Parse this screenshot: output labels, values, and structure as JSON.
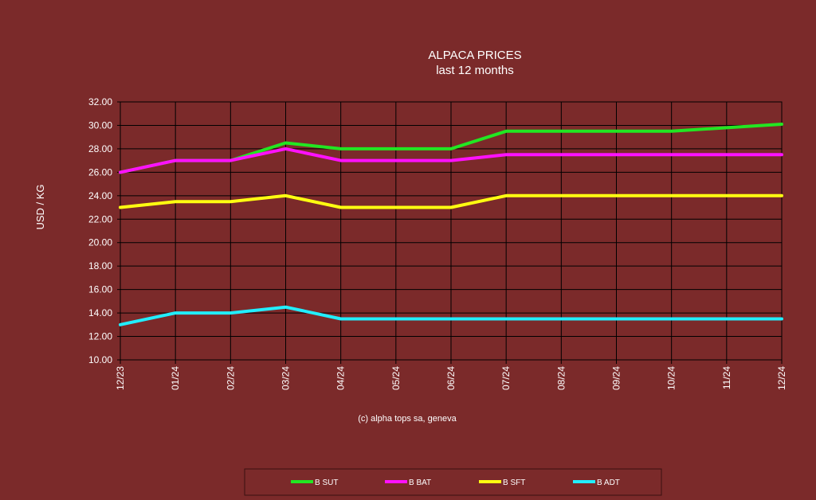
{
  "chart_data": {
    "type": "line",
    "title": "ALPACA PRICES",
    "subtitle": "last 12 months",
    "xlabel": "",
    "ylabel": "USD / KG",
    "categories": [
      "12/23",
      "01/24",
      "02/24",
      "03/24",
      "04/24",
      "05/24",
      "06/24",
      "07/24",
      "08/24",
      "09/24",
      "10/24",
      "11/24",
      "12/24"
    ],
    "ylim": [
      10,
      32
    ],
    "yticks": [
      "10.00",
      "12.00",
      "14.00",
      "16.00",
      "18.00",
      "20.00",
      "22.00",
      "24.00",
      "26.00",
      "28.00",
      "30.00",
      "32.00"
    ],
    "grid": true,
    "legend_position": "bottom",
    "series": [
      {
        "name": "B SUT",
        "color": "#22e622",
        "values": [
          26,
          27,
          27,
          28.5,
          28,
          28,
          28,
          29.5,
          29.5,
          29.5,
          29.5,
          29.8,
          30.1
        ]
      },
      {
        "name": "B BAT",
        "color": "#ff11ff",
        "values": [
          26,
          27,
          27,
          28,
          27,
          27,
          27,
          27.5,
          27.5,
          27.5,
          27.5,
          27.5,
          27.5
        ]
      },
      {
        "name": "B SFT",
        "color": "#ffff11",
        "values": [
          23,
          23.5,
          23.5,
          24,
          23,
          23,
          23,
          24,
          24,
          24,
          24,
          24,
          24
        ]
      },
      {
        "name": "B ADT",
        "color": "#22eeff",
        "values": [
          13,
          14,
          14,
          14.5,
          13.5,
          13.5,
          13.5,
          13.5,
          13.5,
          13.5,
          13.5,
          13.5,
          13.5
        ]
      }
    ]
  },
  "credit": "(c) alpha tops sa, geneva",
  "colors": {
    "background": "#7b2a2a",
    "grid": "#000000",
    "text": "#ffffff"
  }
}
